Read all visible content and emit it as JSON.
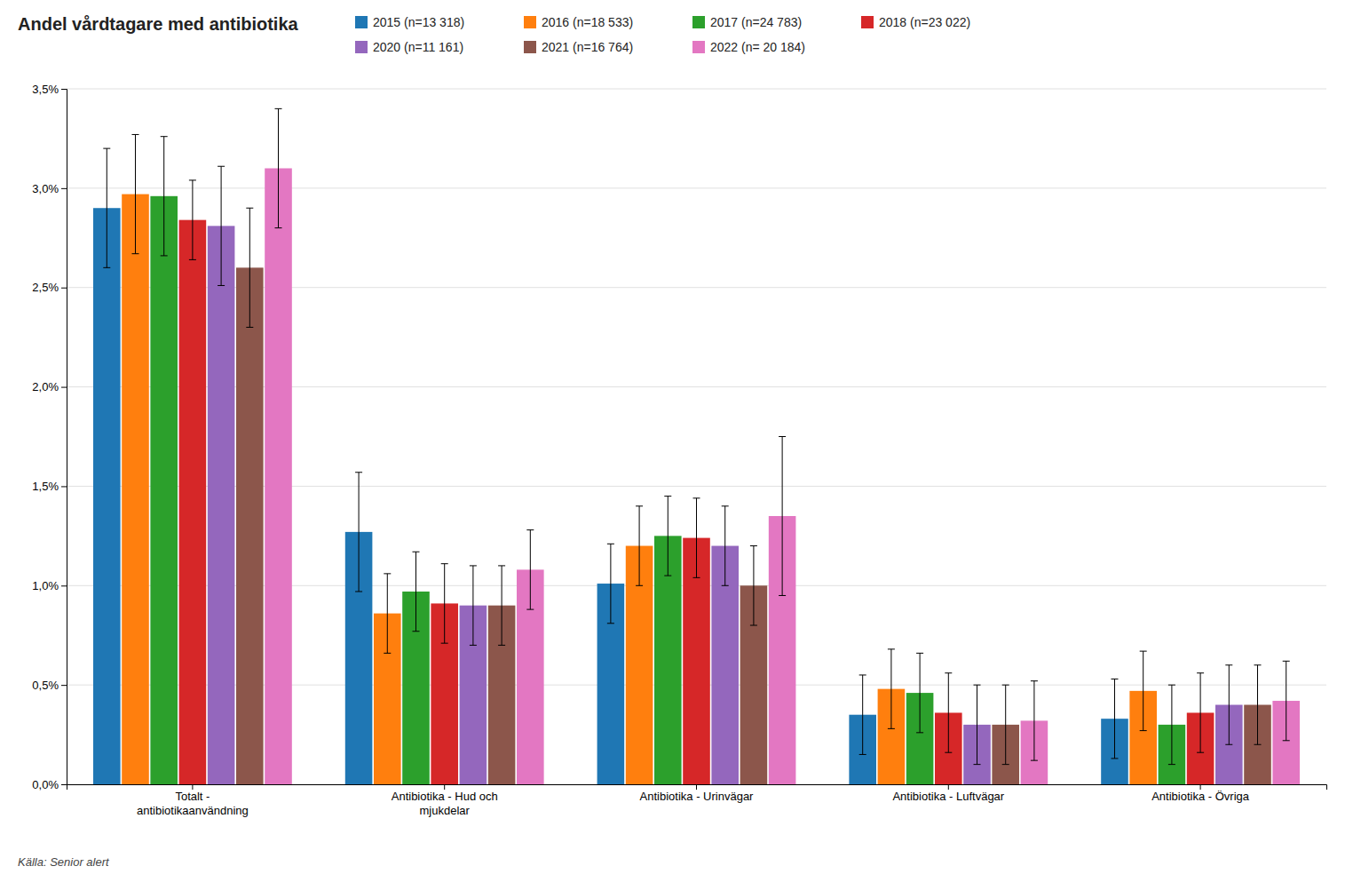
{
  "chart_data": {
    "type": "bar",
    "title": "Andel vårdtagare med antibiotika",
    "annotations": [
      "Källa: Senior alert"
    ],
    "categories": [
      "Totalt -\nantibiotikaanvändning",
      "Antibiotika - Hud och\nmjukdelar",
      "Antibiotika - Urinvägar",
      "Antibiotika - Luftvägar",
      "Antibiotika - Övriga"
    ],
    "series": [
      {
        "name": "2015 (n=13 318)",
        "values": [
          0.029,
          0.0127,
          0.0101,
          0.0035,
          0.0033
        ],
        "error_lower": [
          0.003,
          0.003,
          0.002,
          0.002,
          0.002
        ],
        "error_upper": [
          0.003,
          0.003,
          0.002,
          0.002,
          0.002
        ]
      },
      {
        "name": "2016 (n=18 533)",
        "values": [
          0.0297,
          0.0086,
          0.012,
          0.0048,
          0.0047
        ],
        "error_lower": [
          0.003,
          0.002,
          0.002,
          0.002,
          0.002
        ],
        "error_upper": [
          0.003,
          0.002,
          0.002,
          0.002,
          0.002
        ]
      },
      {
        "name": "2017 (n=24 783)",
        "values": [
          0.0296,
          0.0097,
          0.0125,
          0.0046,
          0.003
        ],
        "error_lower": [
          0.003,
          0.002,
          0.002,
          0.002,
          0.002
        ],
        "error_upper": [
          0.003,
          0.002,
          0.002,
          0.002,
          0.002
        ]
      },
      {
        "name": "2018 (n=23 022)",
        "values": [
          0.0284,
          0.0091,
          0.0124,
          0.0036,
          0.0036
        ],
        "error_lower": [
          0.002,
          0.002,
          0.002,
          0.002,
          0.002
        ],
        "error_upper": [
          0.002,
          0.002,
          0.002,
          0.002,
          0.002
        ]
      },
      {
        "name": "2020 (n=11 161)",
        "values": [
          0.0281,
          0.009,
          0.012,
          0.003,
          0.004
        ],
        "error_lower": [
          0.003,
          0.002,
          0.002,
          0.002,
          0.002
        ],
        "error_upper": [
          0.003,
          0.002,
          0.002,
          0.002,
          0.002
        ]
      },
      {
        "name": "2021 (n=16 764)",
        "values": [
          0.026,
          0.009,
          0.01,
          0.003,
          0.004
        ],
        "error_lower": [
          0.003,
          0.002,
          0.002,
          0.002,
          0.002
        ],
        "error_upper": [
          0.003,
          0.002,
          0.002,
          0.002,
          0.002
        ]
      },
      {
        "name": "2022 (n= 20 184)",
        "values": [
          0.031,
          0.0108,
          0.0135,
          0.0032,
          0.0042
        ],
        "error_lower": [
          0.003,
          0.002,
          0.004,
          0.002,
          0.002
        ],
        "error_upper": [
          0.003,
          0.002,
          0.004,
          0.002,
          0.002
        ]
      }
    ],
    "ylim": [
      0,
      0.035
    ],
    "yticks": [
      {
        "value": 0.0,
        "label": "0,0%"
      },
      {
        "value": 0.005,
        "label": "0,5%"
      },
      {
        "value": 0.01,
        "label": "1,0%"
      },
      {
        "value": 0.015,
        "label": "1,5%"
      },
      {
        "value": 0.02,
        "label": "2,0%"
      },
      {
        "value": 0.025,
        "label": "2,5%"
      },
      {
        "value": 0.03,
        "label": "3,0%"
      },
      {
        "value": 0.035,
        "label": "3,5%"
      }
    ],
    "grid": true,
    "legend": "top"
  }
}
